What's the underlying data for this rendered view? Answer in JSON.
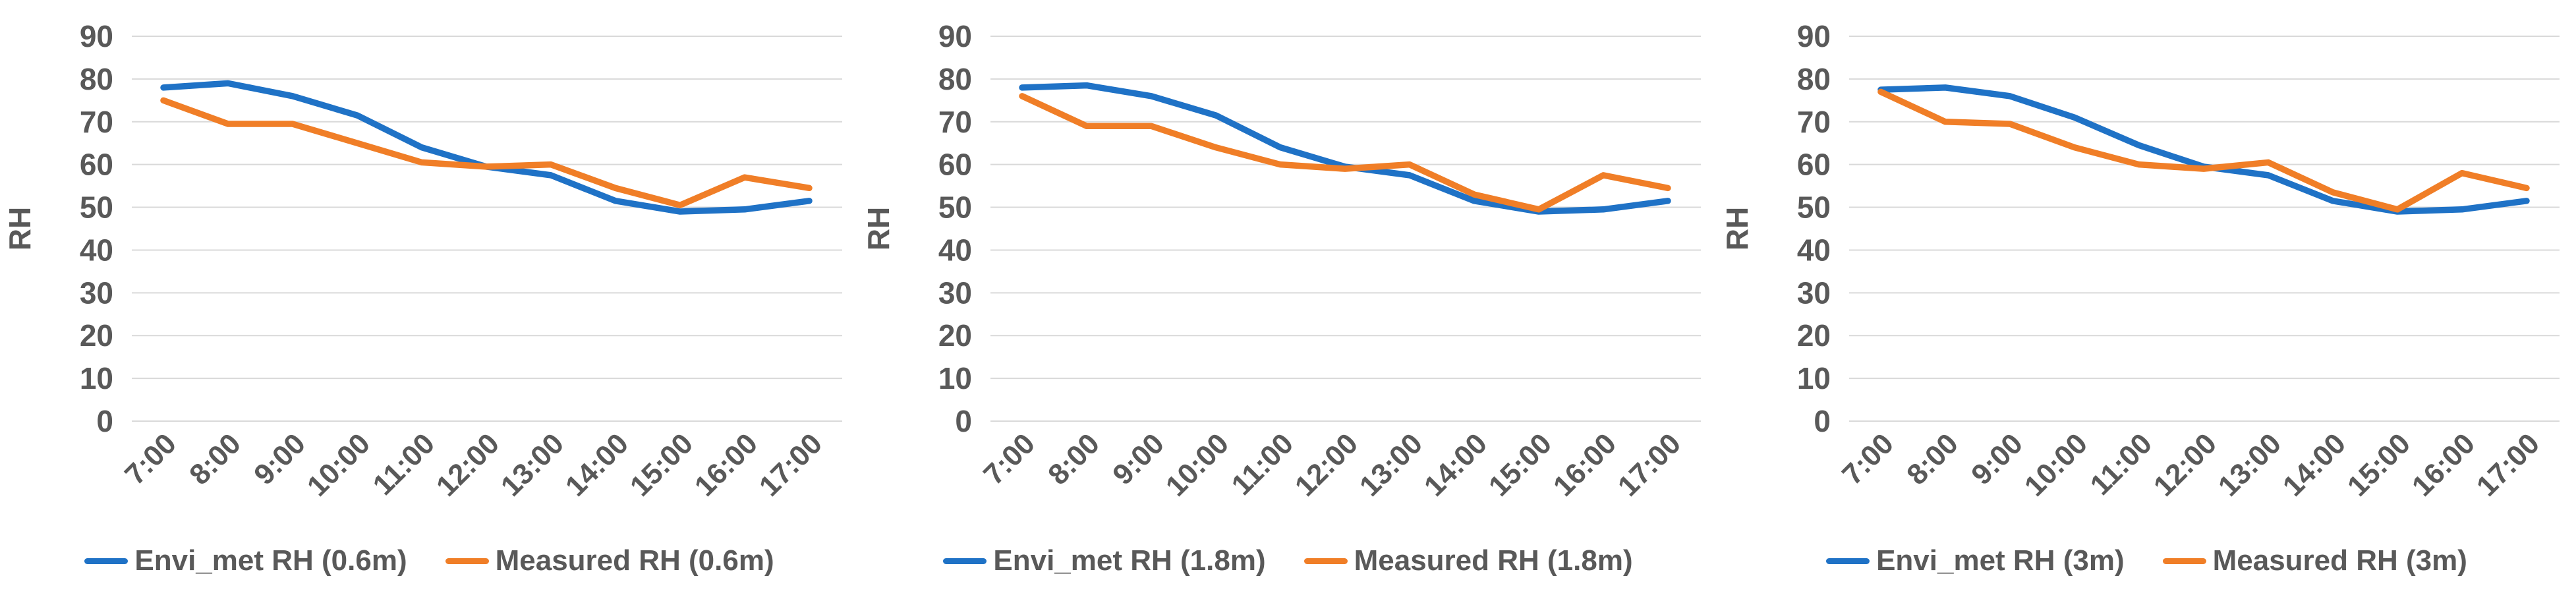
{
  "figure": {
    "background": "#FFFFFF",
    "text_color": "#595959",
    "gridline_color": "#D9D9D9",
    "axis_title": "RH"
  },
  "chart_data": [
    {
      "type": "line",
      "height_label": "0.6m",
      "ylabel": "RH",
      "ylim": [
        0,
        90
      ],
      "ytick_step": 10,
      "yticks": [
        90,
        80,
        70,
        60,
        50,
        40,
        30,
        20,
        10,
        0
      ],
      "grid": true,
      "legend_position": "bottom",
      "categories": [
        "7:00",
        "8:00",
        "9:00",
        "10:00",
        "11:00",
        "12:00",
        "13:00",
        "14:00",
        "15:00",
        "16:00",
        "17:00"
      ],
      "series": [
        {
          "name": "Envi_met RH (0.6m)",
          "color": "#1F72C6",
          "values": [
            78,
            79,
            76,
            71.5,
            64,
            59.5,
            57.5,
            51.5,
            49,
            49.5,
            51.5
          ]
        },
        {
          "name": "Measured RH (0.6m)",
          "color": "#F07E27",
          "values": [
            75,
            69.5,
            69.5,
            65,
            60.5,
            59.5,
            60,
            54.5,
            50.5,
            57,
            54.5
          ]
        }
      ]
    },
    {
      "type": "line",
      "height_label": "1.8m",
      "ylabel": "RH",
      "ylim": [
        0,
        90
      ],
      "ytick_step": 10,
      "yticks": [
        90,
        80,
        70,
        60,
        50,
        40,
        30,
        20,
        10,
        0
      ],
      "grid": true,
      "legend_position": "bottom",
      "categories": [
        "7:00",
        "8:00",
        "9:00",
        "10:00",
        "11:00",
        "12:00",
        "13:00",
        "14:00",
        "15:00",
        "16:00",
        "17:00"
      ],
      "series": [
        {
          "name": "Envi_met RH (1.8m)",
          "color": "#1F72C6",
          "values": [
            78,
            78.5,
            76,
            71.5,
            64,
            59.5,
            57.5,
            51.5,
            49,
            49.5,
            51.5
          ]
        },
        {
          "name": "Measured RH (1.8m)",
          "color": "#F07E27",
          "values": [
            76,
            69,
            69,
            64,
            60,
            59,
            60,
            53,
            49.5,
            57.5,
            54.5
          ]
        }
      ]
    },
    {
      "type": "line",
      "height_label": "3m",
      "ylabel": "RH",
      "ylim": [
        0,
        90
      ],
      "ytick_step": 10,
      "yticks": [
        90,
        80,
        70,
        60,
        50,
        40,
        30,
        20,
        10,
        0
      ],
      "grid": true,
      "legend_position": "bottom",
      "categories": [
        "7:00",
        "8:00",
        "9:00",
        "10:00",
        "11:00",
        "12:00",
        "13:00",
        "14:00",
        "15:00",
        "16:00",
        "17:00"
      ],
      "series": [
        {
          "name": "Envi_met RH (3m)",
          "color": "#1F72C6",
          "values": [
            77.5,
            78,
            76,
            71,
            64.5,
            59.5,
            57.5,
            51.5,
            49,
            49.5,
            51.5
          ]
        },
        {
          "name": "Measured RH (3m)",
          "color": "#F07E27",
          "values": [
            77,
            70,
            69.5,
            64,
            60,
            59,
            60.5,
            53.5,
            49.5,
            58,
            54.5
          ]
        }
      ]
    }
  ]
}
